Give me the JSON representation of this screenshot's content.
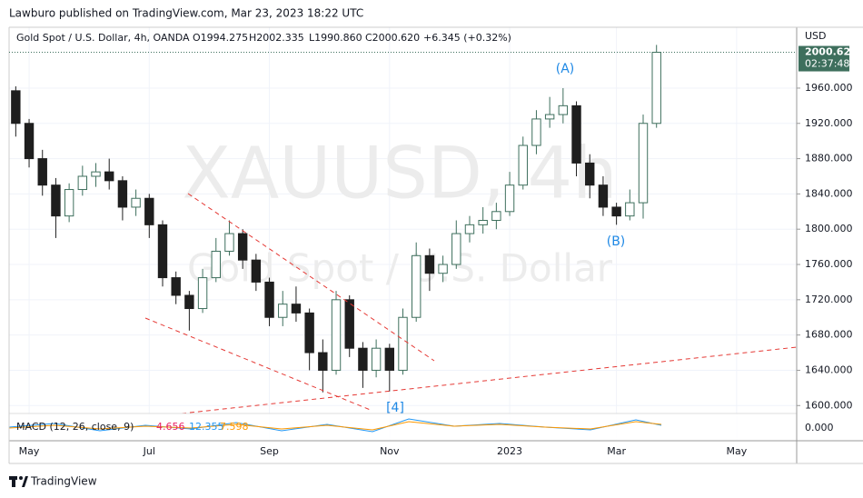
{
  "header": {
    "publisher": "Lawburo published on TradingView.com, Mar 23, 2023 18:22 UTC",
    "symbol": "Gold Spot / U.S. Dollar, 4h, OANDA",
    "open": "O1994.275",
    "high": "H2002.335",
    "low": "L1990.860",
    "close": "C2000.620",
    "change": "+6.345 (+0.32%)"
  },
  "footer": {
    "brand": "TradingView"
  },
  "chart_data": {
    "type": "candlestick",
    "watermark": "XAUUSD, 4h",
    "watermark_sub": "Gold Spot / U.S. Dollar",
    "currency": "USD",
    "up_color": "#3e6f5d",
    "down_color": "#1e1e1e",
    "categories": [
      "",
      "May",
      "",
      "",
      "",
      "",
      "",
      "",
      "",
      "",
      "Jul",
      "",
      "",
      "",
      "",
      "",
      "",
      "",
      "",
      "Sep",
      "",
      "",
      "",
      "",
      "",
      "",
      "",
      "",
      "Nov",
      "",
      "",
      "",
      "",
      "",
      "",
      "",
      "",
      "2023",
      "",
      "",
      "",
      "",
      "",
      "",
      "",
      "Mar",
      "",
      "",
      "",
      "",
      "",
      "",
      "",
      "",
      "May",
      "",
      "",
      "",
      ""
    ],
    "open": [
      1957,
      1920,
      1880,
      1850,
      1815,
      1845,
      1860,
      1865,
      1855,
      1825,
      1835,
      1805,
      1745,
      1725,
      1710,
      1745,
      1775,
      1795,
      1765,
      1740,
      1700,
      1715,
      1705,
      1660,
      1640,
      1720,
      1665,
      1640,
      1665,
      1640,
      1700,
      1770,
      1750,
      1760,
      1795,
      1805,
      1810,
      1820,
      1850,
      1895,
      1925,
      1930,
      1940,
      1875,
      1850,
      1825,
      1815,
      1830,
      1920,
      null,
      null,
      null,
      null,
      null,
      null,
      null,
      null,
      null,
      null
    ],
    "high": [
      1962,
      1925,
      1890,
      1858,
      1852,
      1872,
      1875,
      1880,
      1860,
      1845,
      1840,
      1810,
      1752,
      1730,
      1755,
      1790,
      1810,
      1800,
      1772,
      1745,
      1730,
      1735,
      1710,
      1675,
      1730,
      1725,
      1672,
      1675,
      1670,
      1710,
      1785,
      1778,
      1770,
      1810,
      1815,
      1825,
      1830,
      1865,
      1905,
      1935,
      1950,
      1960,
      1945,
      1885,
      1860,
      1830,
      1845,
      1930,
      2009,
      null,
      null,
      null,
      null,
      null,
      null,
      null,
      null,
      null,
      null
    ],
    "low": [
      1905,
      1870,
      1838,
      1790,
      1808,
      1838,
      1848,
      1845,
      1810,
      1815,
      1790,
      1735,
      1715,
      1685,
      1705,
      1740,
      1770,
      1755,
      1730,
      1690,
      1690,
      1695,
      1640,
      1615,
      1635,
      1655,
      1620,
      1632,
      1616,
      1635,
      1695,
      1730,
      1740,
      1755,
      1785,
      1795,
      1800,
      1815,
      1845,
      1885,
      1915,
      1920,
      1860,
      1835,
      1815,
      1805,
      1810,
      1812,
      1915,
      null,
      null,
      null,
      null,
      null,
      null,
      null,
      null,
      null,
      null
    ],
    "close": [
      1920,
      1880,
      1850,
      1815,
      1845,
      1860,
      1865,
      1855,
      1825,
      1835,
      1805,
      1745,
      1725,
      1710,
      1745,
      1775,
      1795,
      1765,
      1740,
      1700,
      1715,
      1705,
      1660,
      1640,
      1720,
      1665,
      1640,
      1665,
      1640,
      1700,
      1770,
      1750,
      1760,
      1795,
      1805,
      1810,
      1820,
      1850,
      1895,
      1925,
      1930,
      1940,
      1875,
      1850,
      1825,
      1815,
      1830,
      1920,
      2000.62,
      null,
      null,
      null,
      null,
      null,
      null,
      null,
      null,
      null,
      null
    ],
    "ylim": [
      1591,
      2029
    ],
    "yticks": [
      {
        "value": 1600,
        "label": "1600.000"
      },
      {
        "value": 1640,
        "label": "1640.000"
      },
      {
        "value": 1680,
        "label": "1680.000"
      },
      {
        "value": 1720,
        "label": "1720.000"
      },
      {
        "value": 1760,
        "label": "1760.000"
      },
      {
        "value": 1800,
        "label": "1800.000"
      },
      {
        "value": 1840,
        "label": "1840.000"
      },
      {
        "value": 1880,
        "label": "1880.000"
      },
      {
        "value": 1920,
        "label": "1920.000"
      },
      {
        "value": 1960,
        "label": "1960.000"
      }
    ],
    "grid": true,
    "last_price": {
      "value": 2000.62,
      "label": "2000.620"
    },
    "countdown": "02:37:48",
    "annotations": {
      "a": "(A)",
      "b": "(B)",
      "w4": "[4]"
    },
    "indicator": {
      "name": "MACD (12, 26, close, 9)",
      "v1": "4.656",
      "v2": "12.355",
      "v3": "7.598",
      "zero": {
        "value": 0,
        "label": "0.000"
      }
    }
  }
}
